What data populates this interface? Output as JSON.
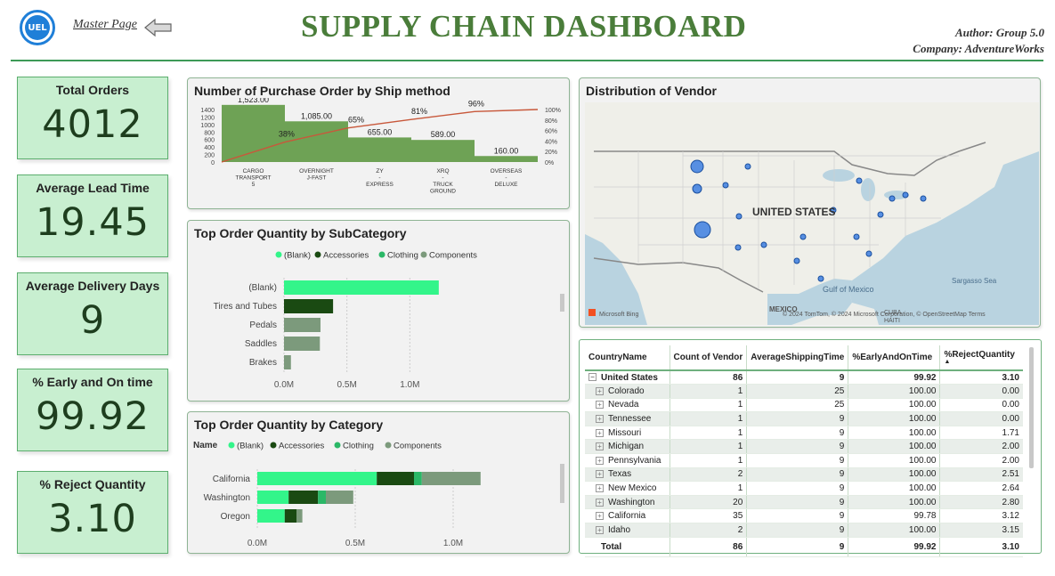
{
  "header": {
    "logo_text": "UEL",
    "master_link": "Master Page",
    "title": "SUPPLY CHAIN DASHBOARD",
    "author": "Author: Group 5.0",
    "company": "Company: AdventureWorks"
  },
  "kpis": [
    {
      "label": "Total Orders",
      "value": "4012"
    },
    {
      "label": "Average Lead Time",
      "value": "19.45"
    },
    {
      "label": "Average Delivery Days",
      "value": "9"
    },
    {
      "label": "% Early and On time",
      "value": "99.92"
    },
    {
      "label": "% Reject Quantity",
      "value": "3.10"
    }
  ],
  "colors": {
    "green_dark": "#4a7d3a",
    "bar_light": "#33f58a",
    "bar_dark": "#1a4a12",
    "bar_mid": "#2bb867",
    "bar_grey": "#7c9a7c",
    "pareto_bar": "#6ea255"
  },
  "chart_data": [
    {
      "type": "bar",
      "title": "Number of Purchase Order by Ship method",
      "categories": [
        "CARGO TRANSPORT 5",
        "OVERNIGHT J-FAST",
        "ZY - EXPRESS",
        "XRQ - TRUCK GROUND",
        "OVERSEAS - DELUXE"
      ],
      "category_lines": [
        [
          "CARGO",
          "TRANSPORT",
          "5"
        ],
        [
          "OVERNIGHT",
          "J-FAST"
        ],
        [
          "ZY",
          "-",
          "EXPRESS"
        ],
        [
          "XRQ",
          "-",
          "TRUCK",
          "GROUND"
        ],
        [
          "OVERSEAS",
          "-",
          "DELUXE"
        ]
      ],
      "values": [
        1523,
        1085,
        655,
        589,
        160
      ],
      "value_labels": [
        "1,523.00",
        "1,085.00",
        "655.00",
        "589.00",
        "160.00"
      ],
      "cumulative_pct_labels": [
        "38%",
        "65%",
        "81%",
        "96%"
      ],
      "cumulative_pct": [
        38,
        65,
        81,
        96,
        100
      ],
      "y_ticks": [
        "0",
        "200",
        "400",
        "600",
        "800",
        "1000",
        "1200",
        "1400"
      ],
      "y2_ticks": [
        "0%",
        "20%",
        "40%",
        "60%",
        "80%",
        "100%"
      ],
      "ylim": [
        0,
        1400
      ]
    },
    {
      "type": "bar",
      "title": "Top Order Quantity by SubCategory",
      "legend": [
        "(Blank)",
        "Accessories",
        "Clothing",
        "Components"
      ],
      "categories": [
        "(Blank)",
        "Tires and Tubes",
        "Pedals",
        "Saddles",
        "Brakes"
      ],
      "values": [
        1.23,
        0.39,
        0.29,
        0.285,
        0.055
      ],
      "x_ticks": [
        "0.0M",
        "0.5M",
        "1.0M"
      ],
      "xlim": [
        0,
        1.5
      ]
    },
    {
      "type": "bar",
      "title": "Top Order Quantity by Category",
      "legend_title": "Name",
      "legend": [
        "(Blank)",
        "Accessories",
        "Clothing",
        "Components"
      ],
      "categories": [
        "California",
        "Washington",
        "Oregon"
      ],
      "series": [
        {
          "name": "(Blank)",
          "values": [
            0.61,
            0.16,
            0.14
          ]
        },
        {
          "name": "Accessories",
          "values": [
            0.19,
            0.15,
            0.06
          ]
        },
        {
          "name": "Clothing",
          "values": [
            0.04,
            0.04,
            0.0
          ]
        },
        {
          "name": "Components",
          "values": [
            0.3,
            0.14,
            0.03
          ]
        }
      ],
      "x_ticks": [
        "0.0M",
        "0.5M",
        "1.0M"
      ],
      "xlim": [
        0,
        1.2
      ]
    }
  ],
  "map": {
    "title": "Distribution of Vendor",
    "country_label": "UNITED STATES",
    "gulf_label": "Gulf of Mexico",
    "sargasso_label": "Sargasso Sea",
    "mexico_label": "MEXICO",
    "cuba_label": "CUBA",
    "haiti_label": "HAITI",
    "bing_label": "Microsoft Bing",
    "attribution": "© 2024 TomTom, © 2024 Microsoft Corporation, © OpenStreetMap  Terms"
  },
  "table": {
    "headers": [
      "CountryName",
      "Count of Vendor",
      "AverageShippingTime",
      "%EarlyAndOnTime",
      "%RejectQuantity"
    ],
    "top": {
      "name": "United States",
      "count": "86",
      "ship": "9",
      "early": "99.92",
      "reject": "3.10"
    },
    "rows": [
      {
        "name": "Colorado",
        "count": "1",
        "ship": "25",
        "early": "100.00",
        "reject": "0.00"
      },
      {
        "name": "Nevada",
        "count": "1",
        "ship": "25",
        "early": "100.00",
        "reject": "0.00"
      },
      {
        "name": "Tennessee",
        "count": "1",
        "ship": "9",
        "early": "100.00",
        "reject": "0.00"
      },
      {
        "name": "Missouri",
        "count": "1",
        "ship": "9",
        "early": "100.00",
        "reject": "1.71"
      },
      {
        "name": "Michigan",
        "count": "1",
        "ship": "9",
        "early": "100.00",
        "reject": "2.00"
      },
      {
        "name": "Pennsylvania",
        "count": "1",
        "ship": "9",
        "early": "100.00",
        "reject": "2.00"
      },
      {
        "name": "Texas",
        "count": "2",
        "ship": "9",
        "early": "100.00",
        "reject": "2.51"
      },
      {
        "name": "New Mexico",
        "count": "1",
        "ship": "9",
        "early": "100.00",
        "reject": "2.64"
      },
      {
        "name": "Washington",
        "count": "20",
        "ship": "9",
        "early": "100.00",
        "reject": "2.80"
      },
      {
        "name": "California",
        "count": "35",
        "ship": "9",
        "early": "99.78",
        "reject": "3.12"
      },
      {
        "name": "Idaho",
        "count": "2",
        "ship": "9",
        "early": "100.00",
        "reject": "3.15"
      }
    ],
    "total": {
      "label": "Total",
      "count": "86",
      "ship": "9",
      "early": "99.92",
      "reject": "3.10"
    }
  }
}
